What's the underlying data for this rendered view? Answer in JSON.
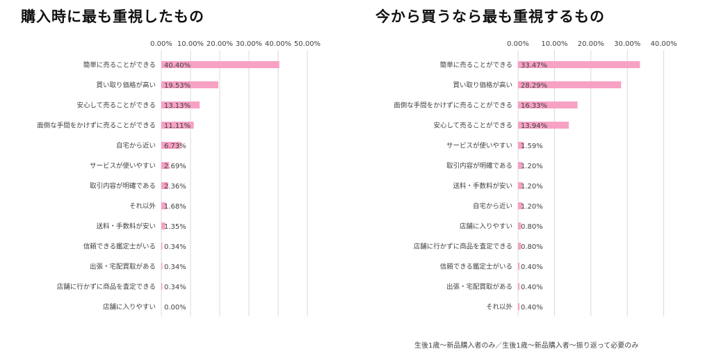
{
  "colors": {
    "bar": "#f7a1c4",
    "grid": "#d9d9d9",
    "text": "#404040"
  },
  "chart_data": [
    {
      "type": "bar",
      "orientation": "horizontal",
      "title": "購入時に最も重視したもの",
      "xlim": [
        0,
        50
      ],
      "xticks": [
        "0.00%",
        "10.00%",
        "20.00%",
        "30.00%",
        "40.00%",
        "50.00%"
      ],
      "categories": [
        "簡単に売ることができる",
        "買い取り価格が高い",
        "安心して売ることができる",
        "面倒な手間をかけずに売ることができる",
        "自宅から近い",
        "サービスが使いやすい",
        "取引内容が明確である",
        "それ以外",
        "送料・手数料が安い",
        "信頼できる鑑定士がいる",
        "出張・宅配買取がある",
        "店舗に行かずに商品を査定できる",
        "店舗に入りやすい"
      ],
      "values": [
        40.4,
        19.53,
        13.13,
        11.11,
        6.73,
        2.69,
        2.36,
        1.68,
        1.35,
        0.34,
        0.34,
        0.34,
        0.0
      ],
      "labels": [
        "40.40%",
        "19.53%",
        "13.13%",
        "11.11%",
        "6.73%",
        "2.69%",
        "2.36%",
        "1.68%",
        "1.35%",
        "0.34%",
        "0.34%",
        "0.34%",
        "0.00%"
      ],
      "grid": true
    },
    {
      "type": "bar",
      "orientation": "horizontal",
      "title": "今から買うなら最も重視するもの",
      "xlim": [
        0,
        40
      ],
      "xticks": [
        "0.00%",
        "10.00%",
        "20.00%",
        "30.00%",
        "40.00%"
      ],
      "categories": [
        "簡単に売ることができる",
        "買い取り価格が高い",
        "面倒な手間をかけずに売ることができる",
        "安心して売ることができる",
        "サービスが使いやすい",
        "取引内容が明確である",
        "送料・手数料が安い",
        "自宅から近い",
        "店舗に入りやすい",
        "店舗に行かずに商品を査定できる",
        "信頼できる鑑定士がいる",
        "出張・宅配買取がある",
        "それ以外"
      ],
      "values": [
        33.47,
        28.29,
        16.33,
        13.94,
        1.59,
        1.2,
        1.2,
        1.2,
        0.8,
        0.8,
        0.4,
        0.4,
        0.4
      ],
      "labels": [
        "33.47%",
        "28.29%",
        "16.33%",
        "13.94%",
        "1.59%",
        "1.20%",
        "1.20%",
        "1.20%",
        "0.80%",
        "0.80%",
        "0.40%",
        "0.40%",
        "0.40%"
      ],
      "grid": true
    }
  ],
  "footnote": "生後1歳〜新品購入者のみ／生後1歳〜新品購入者〜振り返って必要のみ"
}
